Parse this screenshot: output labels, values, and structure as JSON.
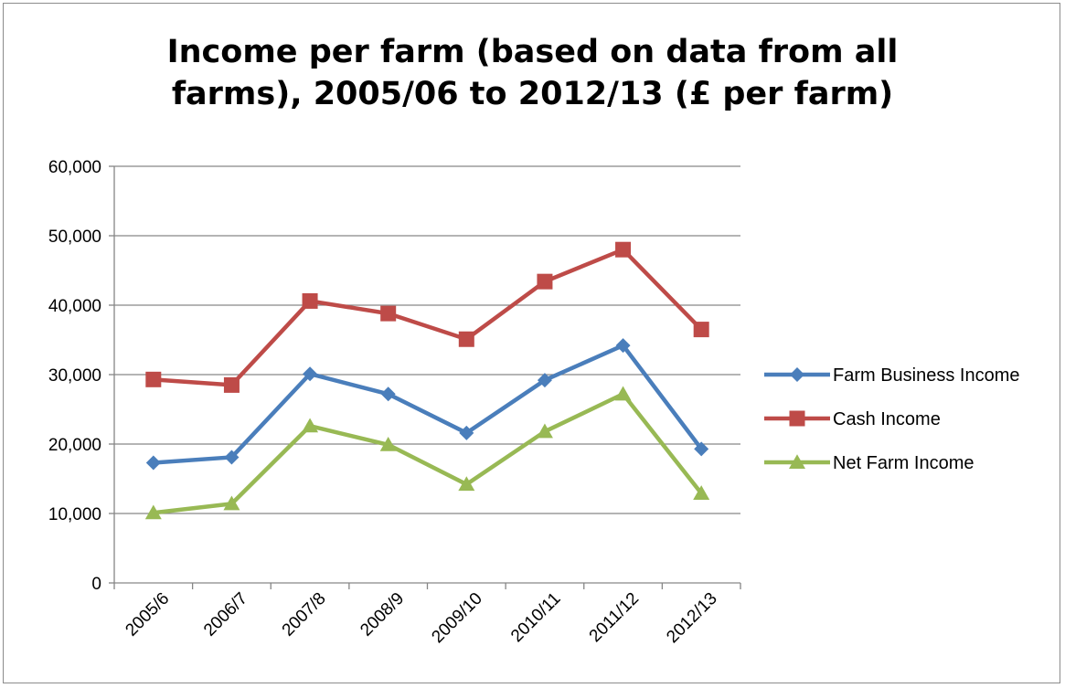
{
  "chart_data": {
    "type": "line",
    "title_lines": [
      "Income per farm (based on data from all",
      "farms), 2005/06 to 2012/13 (£ per farm)"
    ],
    "categories": [
      "2005/6",
      "2006/7",
      "2007/8",
      "2008/9",
      "2009/10",
      "2010/11",
      "2011/12",
      "2012/13"
    ],
    "ylim": [
      0,
      60000
    ],
    "yticks": [
      0,
      10000,
      20000,
      30000,
      40000,
      50000,
      60000
    ],
    "ytick_labels": [
      "0",
      "10,000",
      "20,000",
      "30,000",
      "40,000",
      "50,000",
      "60,000"
    ],
    "grid": true,
    "legend_position": "right",
    "series": [
      {
        "name": "Farm Business Income",
        "color": "#4a7ebb",
        "marker": "diamond",
        "values": [
          17300,
          18100,
          30100,
          27200,
          21600,
          29200,
          34200,
          19300
        ]
      },
      {
        "name": "Cash Income",
        "color": "#be4b48",
        "marker": "square",
        "values": [
          29300,
          28500,
          40600,
          38800,
          35100,
          43400,
          48000,
          36500
        ]
      },
      {
        "name": "Net Farm Income",
        "color": "#98b954",
        "marker": "triangle",
        "values": [
          10100,
          11400,
          22600,
          19900,
          14200,
          21800,
          27200,
          12900
        ]
      }
    ]
  }
}
